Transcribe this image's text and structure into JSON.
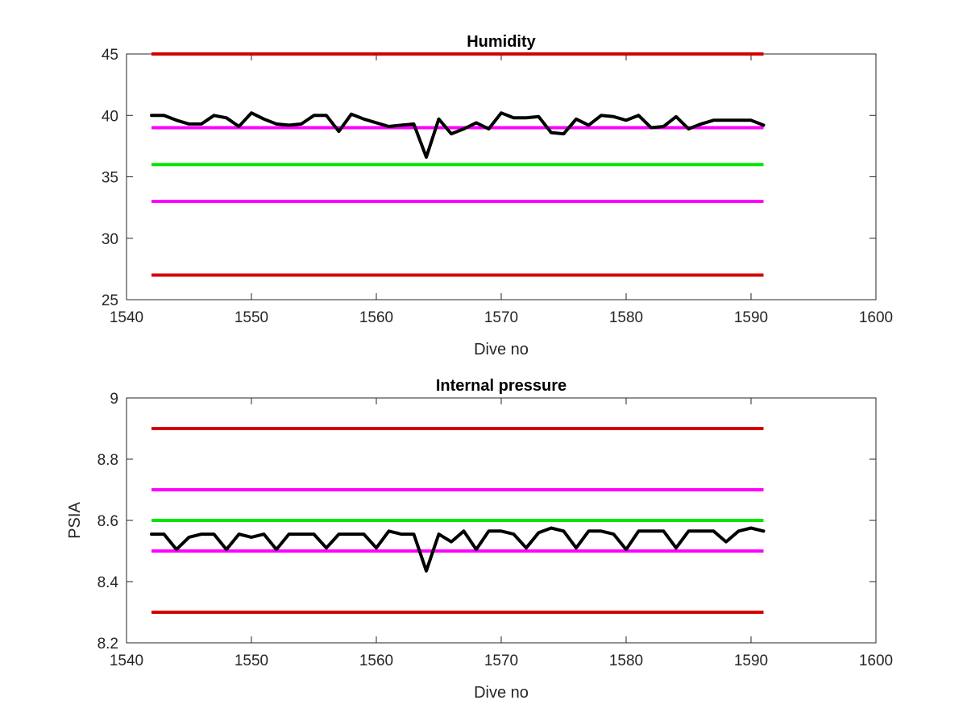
{
  "chart_data": [
    {
      "type": "line",
      "title": "Humidity",
      "xlabel": "Dive no",
      "ylabel": "",
      "xlim": [
        1540,
        1600
      ],
      "ylim": [
        25,
        45
      ],
      "xticks": [
        "1540",
        "1550",
        "1560",
        "1570",
        "1580",
        "1590",
        "1600"
      ],
      "yticks": [
        "25",
        "30",
        "35",
        "40",
        "45"
      ],
      "grid": false,
      "reference_lines": [
        {
          "value": 45,
          "color": "#d40000",
          "x": [
            1542,
            1591
          ]
        },
        {
          "value": 39,
          "color": "#ff00ff",
          "x": [
            1542,
            1591
          ]
        },
        {
          "value": 36,
          "color": "#00e600",
          "x": [
            1542,
            1591
          ]
        },
        {
          "value": 33,
          "color": "#ff00ff",
          "x": [
            1542,
            1591
          ]
        },
        {
          "value": 27,
          "color": "#d40000",
          "x": [
            1542,
            1591
          ]
        }
      ],
      "series": [
        {
          "color": "#000000",
          "x": [
            1542,
            1543,
            1544,
            1545,
            1546,
            1547,
            1548,
            1549,
            1550,
            1551,
            1552,
            1553,
            1554,
            1555,
            1556,
            1557,
            1558,
            1559,
            1560,
            1561,
            1562,
            1563,
            1564,
            1565,
            1566,
            1567,
            1568,
            1569,
            1570,
            1571,
            1572,
            1573,
            1574,
            1575,
            1576,
            1577,
            1578,
            1579,
            1580,
            1581,
            1582,
            1583,
            1584,
            1585,
            1586,
            1587,
            1588,
            1589,
            1590,
            1591
          ],
          "y": [
            40.0,
            40.0,
            39.6,
            39.3,
            39.3,
            40.0,
            39.8,
            39.1,
            40.2,
            39.7,
            39.3,
            39.2,
            39.3,
            40.0,
            40.0,
            38.7,
            40.1,
            39.7,
            39.4,
            39.1,
            39.2,
            39.3,
            36.6,
            39.7,
            38.5,
            38.9,
            39.4,
            38.9,
            40.2,
            39.8,
            39.8,
            39.9,
            38.6,
            38.5,
            39.7,
            39.2,
            40.0,
            39.9,
            39.6,
            40.0,
            39.0,
            39.1,
            39.9,
            38.9,
            39.3,
            39.6,
            39.6,
            39.6,
            39.6,
            39.2
          ]
        }
      ]
    },
    {
      "type": "line",
      "title": "Internal pressure",
      "xlabel": "Dive no",
      "ylabel": "PSIA",
      "xlim": [
        1540,
        1600
      ],
      "ylim": [
        8.2,
        9.0
      ],
      "xticks": [
        "1540",
        "1550",
        "1560",
        "1570",
        "1580",
        "1590",
        "1600"
      ],
      "yticks": [
        "8.2",
        "8.4",
        "8.6",
        "8.8",
        "9"
      ],
      "grid": false,
      "reference_lines": [
        {
          "value": 8.9,
          "color": "#d40000",
          "x": [
            1542,
            1591
          ]
        },
        {
          "value": 8.7,
          "color": "#ff00ff",
          "x": [
            1542,
            1591
          ]
        },
        {
          "value": 8.6,
          "color": "#00e600",
          "x": [
            1542,
            1591
          ]
        },
        {
          "value": 8.5,
          "color": "#ff00ff",
          "x": [
            1542,
            1591
          ]
        },
        {
          "value": 8.3,
          "color": "#d40000",
          "x": [
            1542,
            1591
          ]
        }
      ],
      "series": [
        {
          "color": "#000000",
          "x": [
            1542,
            1543,
            1544,
            1545,
            1546,
            1547,
            1548,
            1549,
            1550,
            1551,
            1552,
            1553,
            1554,
            1555,
            1556,
            1557,
            1558,
            1559,
            1560,
            1561,
            1562,
            1563,
            1564,
            1565,
            1566,
            1567,
            1568,
            1569,
            1570,
            1571,
            1572,
            1573,
            1574,
            1575,
            1576,
            1577,
            1578,
            1579,
            1580,
            1581,
            1582,
            1583,
            1584,
            1585,
            1586,
            1587,
            1588,
            1589,
            1590,
            1591
          ],
          "y": [
            8.555,
            8.555,
            8.505,
            8.545,
            8.555,
            8.555,
            8.505,
            8.555,
            8.545,
            8.555,
            8.505,
            8.555,
            8.555,
            8.555,
            8.51,
            8.555,
            8.555,
            8.555,
            8.51,
            8.565,
            8.555,
            8.555,
            8.435,
            8.555,
            8.53,
            8.565,
            8.505,
            8.565,
            8.565,
            8.555,
            8.51,
            8.56,
            8.575,
            8.565,
            8.51,
            8.565,
            8.565,
            8.555,
            8.505,
            8.565,
            8.565,
            8.565,
            8.51,
            8.565,
            8.565,
            8.565,
            8.53,
            8.565,
            8.575,
            8.565
          ]
        }
      ]
    }
  ]
}
